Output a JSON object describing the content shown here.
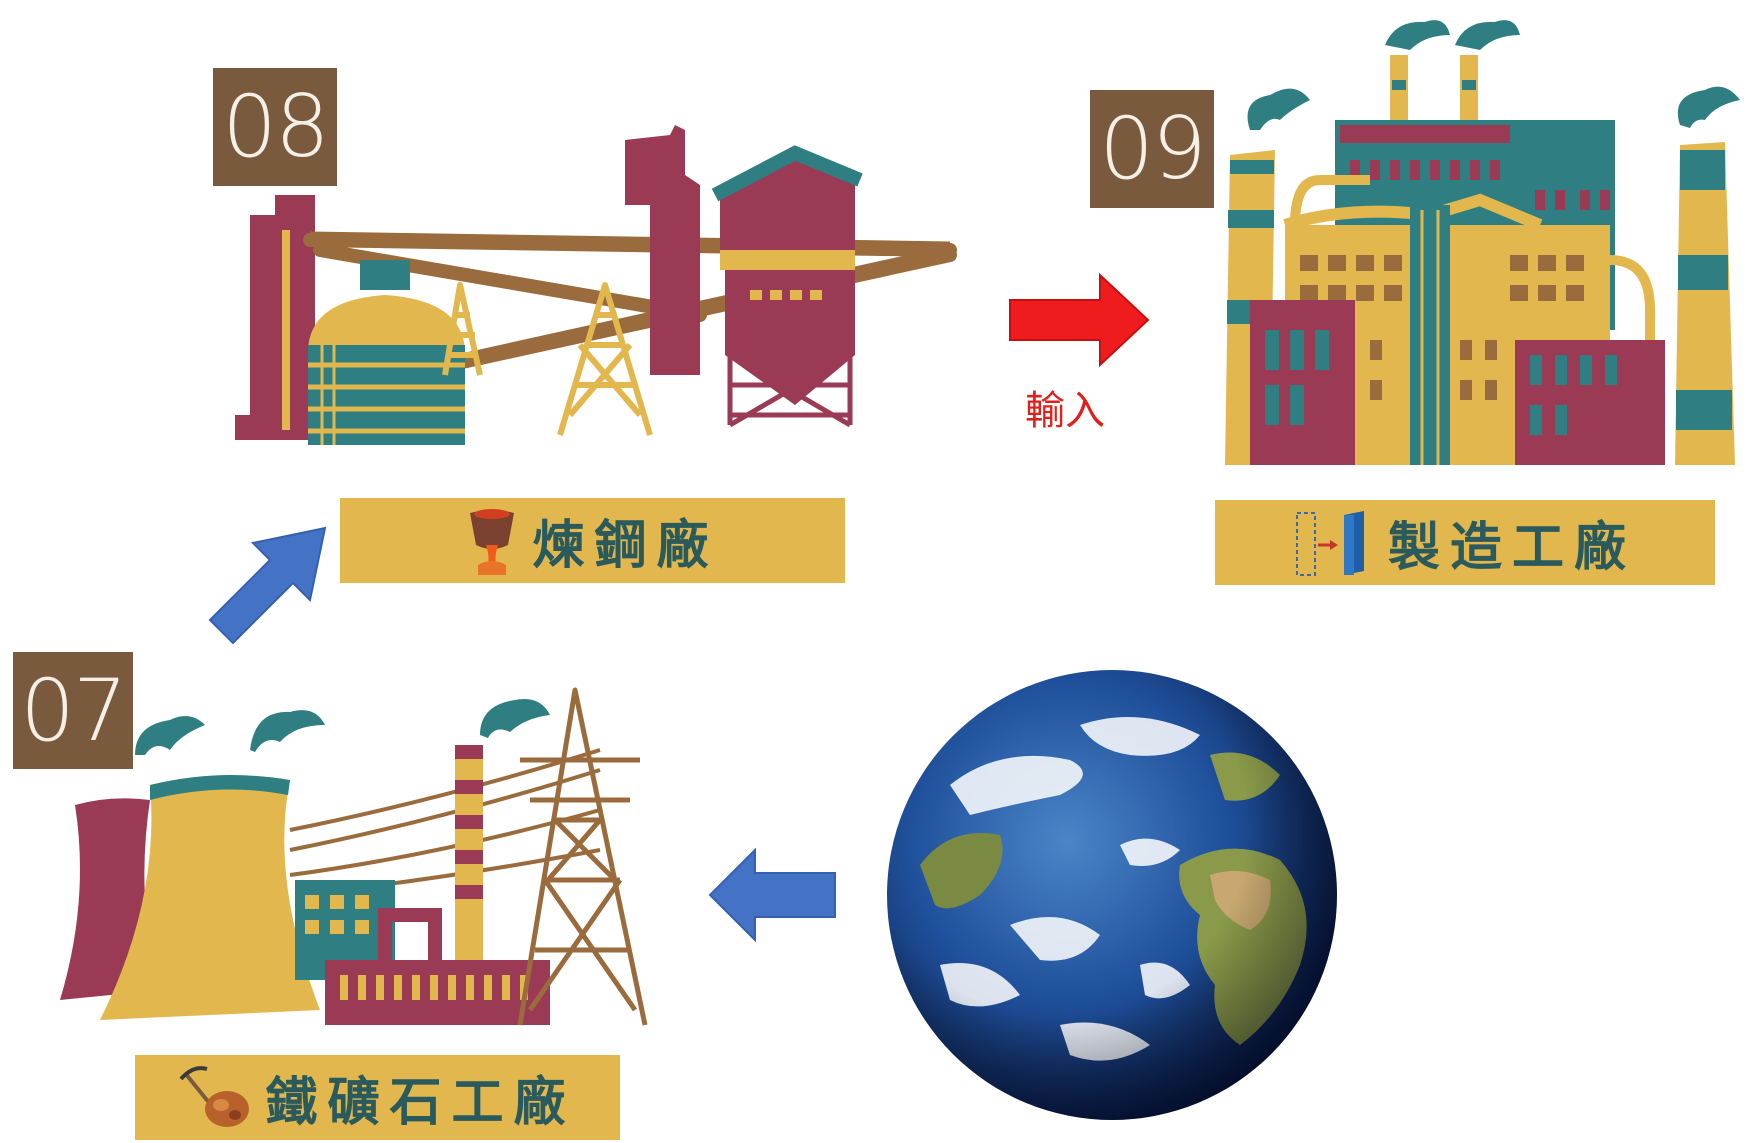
{
  "stages": [
    {
      "number": "07",
      "label": "鐵礦石工廠",
      "icon": "pickaxe-ore-icon"
    },
    {
      "number": "08",
      "label": "煉鋼廠",
      "icon": "ladle-molten-steel-icon"
    },
    {
      "number": "09",
      "label": "製造工廠",
      "icon": "steel-slab-icon"
    }
  ],
  "arrow_caption": "輸入",
  "colors": {
    "label_bg": "#e2b84e",
    "label_text": "#2a5a5c",
    "number_bg": "#7a5a3c",
    "maroon": "#9a3a55",
    "teal": "#2f7f82",
    "mustard": "#e2b84e",
    "brown": "#9a6b3c",
    "blue_arrow": "#4472c4",
    "red_arrow": "#ee1c1c"
  },
  "earth": "earth-globe"
}
